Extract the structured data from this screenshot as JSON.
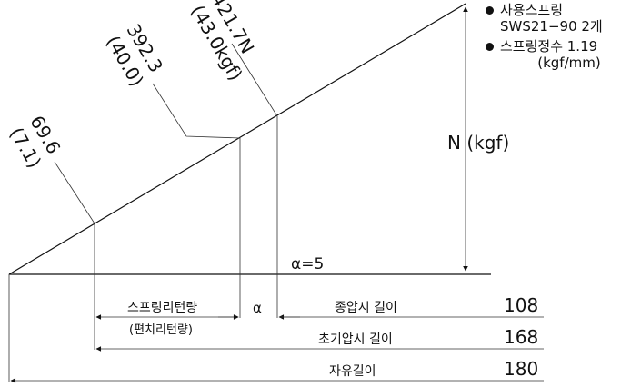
{
  "legend": {
    "spring_used_label": "사용스프링",
    "spring_used_value": "SWS21−90 2개",
    "spring_constant_label": "스프링정수 1.19",
    "spring_constant_unit": "(kgf/mm)"
  },
  "loads": {
    "p1_value": "69.6",
    "p1_kgf": "(7.1)",
    "p2_value": "392.3",
    "p2_kgf": "(40.0)",
    "p3_value": "421.7N",
    "p3_kgf": "(43.0kgf)"
  },
  "force_axis_label": "N (kgf)",
  "alpha_note": "α=5",
  "dimensions": {
    "return_label": "스프링리턴량",
    "return_sub_label": "(편치리턴량)",
    "alpha_symbol": "α",
    "final_press_label": "종압시 길이",
    "final_press_value": "108",
    "initial_press_label": "초기압시 길이",
    "initial_press_value": "168",
    "free_length_label": "자유길이",
    "free_length_value": "180"
  }
}
